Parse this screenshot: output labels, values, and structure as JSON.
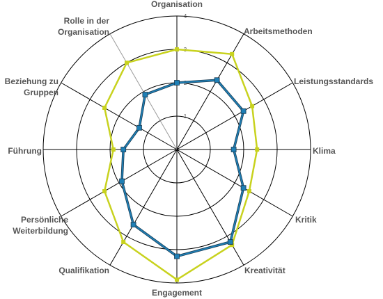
{
  "chart_data": {
    "type": "radar",
    "axes": [
      "Organisation",
      "Arbeitsmethoden",
      "Leistungsstandards",
      "Klima",
      "Kritik",
      "Kreativität",
      "Engagement",
      "Qualifikation",
      "Persönliche Weiterbildung",
      "Führung",
      "Beziehung zu Gruppen",
      "Rolle in der Organisation"
    ],
    "axis_label_lines": [
      [
        "Organisation"
      ],
      [
        "Arbeitsmethoden"
      ],
      [
        "Leistungsstandards"
      ],
      [
        "Klima"
      ],
      [
        "Kritik"
      ],
      [
        "Kreativität"
      ],
      [
        "Engagement"
      ],
      [
        "Qualifikation"
      ],
      [
        "Persönliche",
        "Weiterbildung"
      ],
      [
        "Führung"
      ],
      [
        "Beziehung zu",
        "Gruppen"
      ],
      [
        "Rolle in der",
        "Organisation"
      ]
    ],
    "ticks": [
      "1",
      "2",
      "3",
      "4"
    ],
    "rlim": [
      0,
      4
    ],
    "series": [
      {
        "values": [
          3.0,
          3.3,
          2.6,
          2.4,
          2.5,
          3.3,
          3.9,
          3.2,
          2.5,
          1.9,
          2.5,
          3.0
        ]
      },
      {
        "values": [
          2.0,
          2.4,
          2.3,
          1.7,
          2.3,
          3.2,
          3.2,
          2.6,
          1.9,
          1.6,
          1.3,
          1.9
        ]
      }
    ],
    "colors": {
      "series_1": "#c8d21e",
      "series_2": "#1f7fb5",
      "series_2_shadow": "#1a3a50",
      "grid": "#000000",
      "highlight_spoke": "#9a9a9a"
    }
  }
}
